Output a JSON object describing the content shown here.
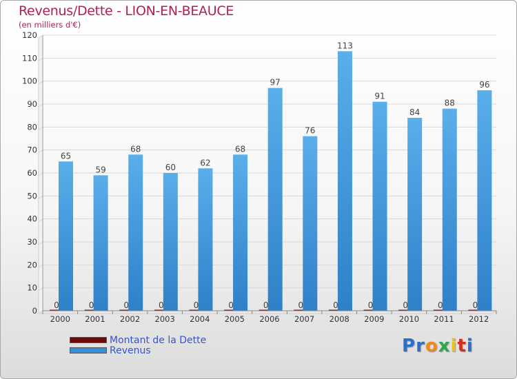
{
  "chart_data": {
    "type": "bar",
    "title": "Revenus/Dette - LION-EN-BEAUCE",
    "subtitle": "(en milliers d'€)",
    "categories": [
      "2000",
      "2001",
      "2002",
      "2003",
      "2004",
      "2005",
      "2006",
      "2007",
      "2008",
      "2009",
      "2010",
      "2011",
      "2012"
    ],
    "series": [
      {
        "name": "Montant de la Dette",
        "color": "#6b0a0a",
        "values": [
          0,
          0,
          0,
          0,
          0,
          0,
          0,
          0,
          0,
          0,
          0,
          0,
          0
        ]
      },
      {
        "name": "Revenus",
        "color": "#3a90d6",
        "values": [
          65,
          59,
          68,
          60,
          62,
          68,
          97,
          76,
          113,
          91,
          84,
          88,
          96
        ]
      }
    ],
    "ylim": [
      0,
      120
    ],
    "yticks": [
      0,
      10,
      20,
      30,
      40,
      50,
      60,
      70,
      80,
      90,
      100,
      110,
      120
    ],
    "grid": true,
    "legend": "bottom-left"
  },
  "logo": {
    "text": "Proxiti",
    "letter_colors": [
      "#2a6fc9",
      "#2a6fc9",
      "#f08a1c",
      "#2ca84a",
      "#e8c21a",
      "#d0321e",
      "#2a6fc9"
    ]
  }
}
